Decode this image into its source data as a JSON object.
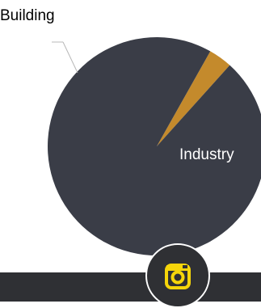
{
  "chart_data": {
    "type": "pie",
    "slices": [
      {
        "label": "Building",
        "value": 3.5,
        "color": "#c48a2c"
      },
      {
        "label": "Industry",
        "value": 96.5,
        "color": "#3a3d47"
      }
    ],
    "start_angle_deg": -48
  },
  "social": {
    "icon": "instagram-icon",
    "accent": "#f5d50a"
  }
}
